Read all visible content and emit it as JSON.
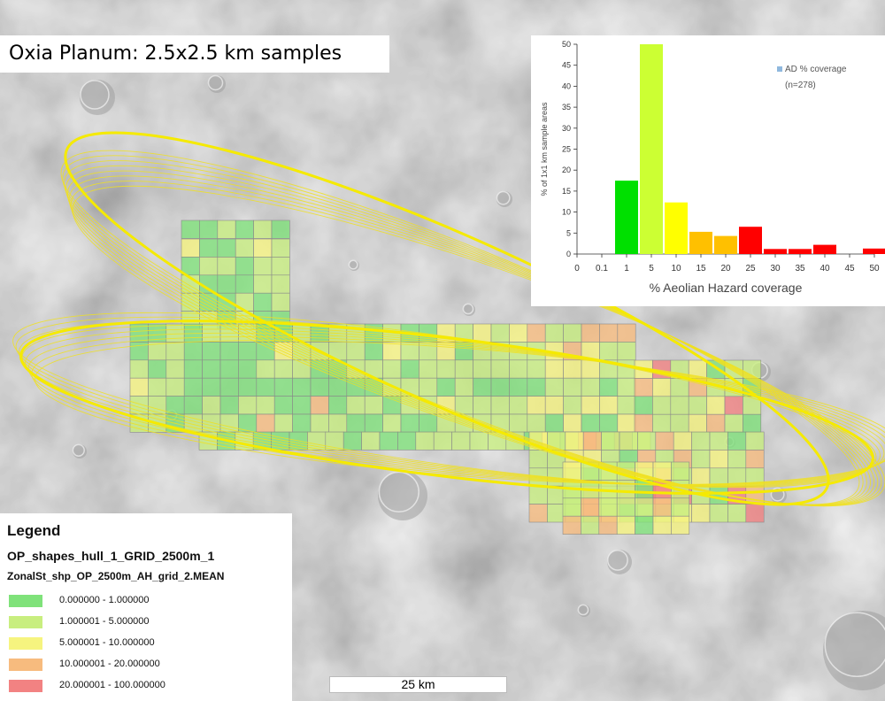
{
  "title": "Oxia Planum: 2.5x2.5 km samples",
  "legend": {
    "heading": "Legend",
    "layer": "OP_shapes_hull_1_GRID_2500m_1",
    "field": "ZonalSt_shp_OP_2500m_AH_grid_2.MEAN",
    "classes": [
      {
        "label": "0.000000 - 1.000000",
        "color": "#7fe27a"
      },
      {
        "label": "1.000001 - 5.000000",
        "color": "#c8ee7f"
      },
      {
        "label": "5.000001 - 10.000000",
        "color": "#f6f47f"
      },
      {
        "label": "10.000001 - 20.000000",
        "color": "#f7bb7e"
      },
      {
        "label": "20.000001 - 100.000000",
        "color": "#f28282"
      }
    ]
  },
  "scale_bar": "25 km",
  "chart_data": {
    "type": "bar",
    "categories": [
      "0",
      "0.1",
      "1",
      "5",
      "10",
      "15",
      "20",
      "25",
      "30",
      "35",
      "40",
      "45",
      "50"
    ],
    "values": [
      0,
      0,
      17.5,
      50,
      12.3,
      5.3,
      4.3,
      6.5,
      1.2,
      1.2,
      2.2,
      0,
      1.3
    ],
    "colors": [
      "#00e000",
      "#00e000",
      "#00e000",
      "#ccff33",
      "#ffff00",
      "#ffc000",
      "#ffc000",
      "#ff0000",
      "#ff0000",
      "#ff0000",
      "#ff0000",
      "#ff0000",
      "#ff0000"
    ],
    "xlabel": "% Aeolian Hazard coverage",
    "ylabel": "% of 1x1 km sample areas",
    "ylim": [
      0,
      50
    ],
    "yticks": [
      0,
      5,
      10,
      15,
      20,
      25,
      30,
      35,
      40,
      45,
      50
    ],
    "legend": {
      "entry": "AD % coverage",
      "note": "(n=278)",
      "color": "#8fb8de",
      "position": "top-right"
    },
    "grid": false
  }
}
